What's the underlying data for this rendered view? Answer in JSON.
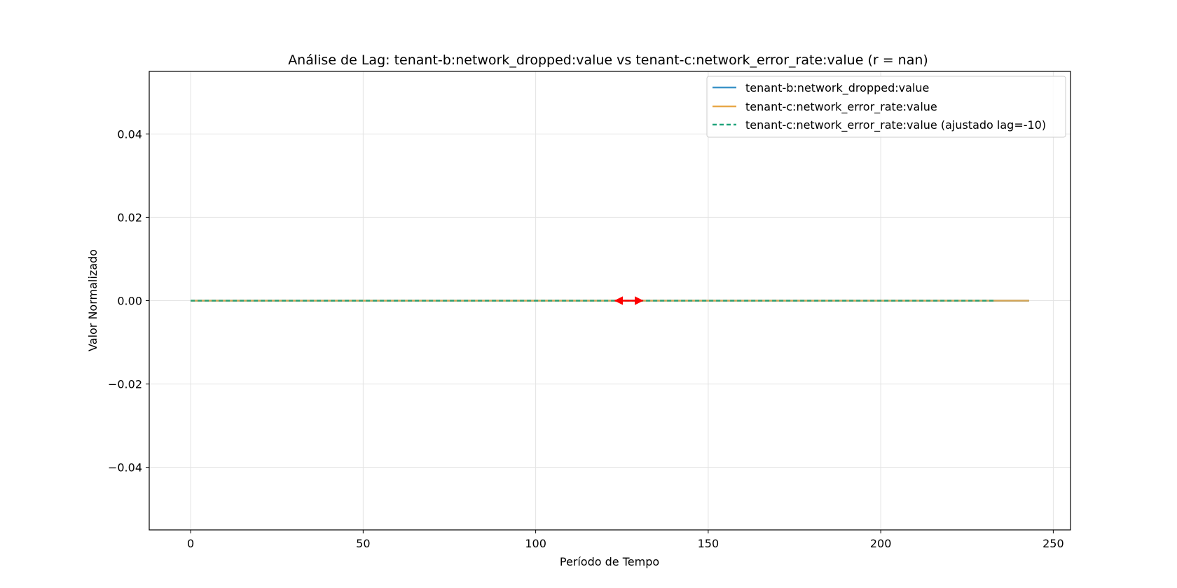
{
  "chart_data": {
    "type": "line",
    "title": "Análise de Lag: tenant-b:network_dropped:value vs tenant-c:network_error_rate:value (r = nan)",
    "xlabel": "Período de Tempo",
    "ylabel": "Valor Normalizado",
    "xlim": [
      -12,
      255
    ],
    "ylim": [
      -0.055,
      0.055
    ],
    "xticks": [
      0,
      50,
      100,
      150,
      200,
      250
    ],
    "xtick_labels": [
      "0",
      "50",
      "100",
      "150",
      "200",
      "250"
    ],
    "yticks": [
      0.04,
      0.02,
      0.0,
      -0.02,
      -0.04
    ],
    "ytick_labels": [
      "0.04",
      "0.02",
      "0.00",
      "−0.02",
      "−0.04"
    ],
    "grid": true,
    "legend_position": "top-right",
    "series": [
      {
        "name": "tenant-b:network_dropped:value",
        "color": "#3d94c8",
        "style": "solid",
        "x": [
          0,
          243
        ],
        "y": [
          0.0,
          0.0
        ]
      },
      {
        "name": "tenant-c:network_error_rate:value",
        "color": "#e8a84a",
        "style": "solid",
        "x": [
          0,
          243
        ],
        "y": [
          0.0,
          0.0
        ]
      },
      {
        "name": "tenant-c:network_error_rate:value (ajustado lag=-10)",
        "color": "#1fa37a",
        "style": "dashed",
        "x": [
          0,
          233
        ],
        "y": [
          0.0,
          0.0
        ]
      }
    ],
    "annotations": [
      {
        "type": "double-arrow",
        "color": "#ff0000",
        "x": [
          123,
          131
        ],
        "y": 0.0
      }
    ]
  }
}
